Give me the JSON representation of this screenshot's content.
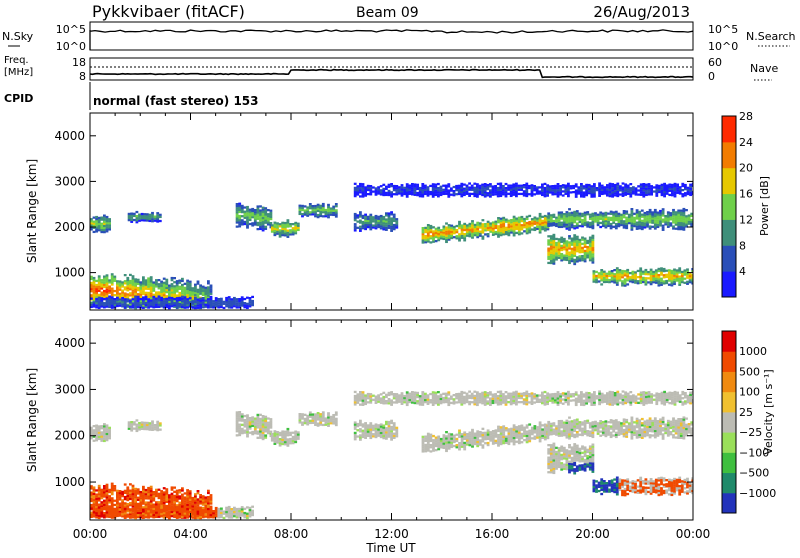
{
  "header": {
    "station": "Pykkvibaer (fitACF)",
    "beam": "Beam 09",
    "date": "26/Aug/2013"
  },
  "top_panels": {
    "nsky_label": "N.Sky",
    "nsearch_label": "N.Search",
    "nsky_ticks": [
      "10^5",
      "10^0"
    ],
    "nsearch_ticks": [
      "10^5",
      "10^0"
    ],
    "freq_label_1": "Freq.",
    "freq_label_2": "[MHz]",
    "freq_ticks": [
      "18",
      "8"
    ],
    "nave_label": "Nave",
    "nave_ticks": [
      "60",
      "0"
    ],
    "cpid_label": "CPID",
    "cpid_text": "normal (fast stereo) 153"
  },
  "chart_data": [
    {
      "type": "heatmap",
      "name": "power",
      "ylabel": "Slant Range [km]",
      "ylim": [
        180,
        4500
      ],
      "yticks": [
        1000,
        2000,
        3000,
        4000
      ],
      "xlim": [
        0,
        24
      ],
      "colorbar_label": "Power [dB]",
      "colorbar_ticks": [
        "4",
        "8",
        "12",
        "16",
        "20",
        "24",
        "28"
      ],
      "colors": [
        "#1a1aff",
        "#2a4fb8",
        "#3f8f7a",
        "#6fd04a",
        "#e6c800",
        "#f27c00",
        "#ff2a00"
      ]
    },
    {
      "type": "heatmap",
      "name": "velocity",
      "ylabel": "Slant Range [km]",
      "ylim": [
        180,
        4500
      ],
      "yticks": [
        1000,
        2000,
        3000,
        4000
      ],
      "xlim": [
        0,
        24
      ],
      "xlabel": "Time UT",
      "xticks": [
        "00:00",
        "04:00",
        "08:00",
        "12:00",
        "16:00",
        "20:00",
        "00:00"
      ],
      "colorbar_label": "Velocity [m s⁻¹]",
      "colorbar_ticks": [
        "1000",
        "500",
        "100",
        "25",
        "−25",
        "−100",
        "−500",
        "−1000"
      ],
      "colors": [
        "#2233bb",
        "#1f8a6a",
        "#3fbf3f",
        "#9adf5a",
        "#bcbcb4",
        "#f0c030",
        "#f08a10",
        "#f04a00",
        "#e00000"
      ]
    }
  ]
}
